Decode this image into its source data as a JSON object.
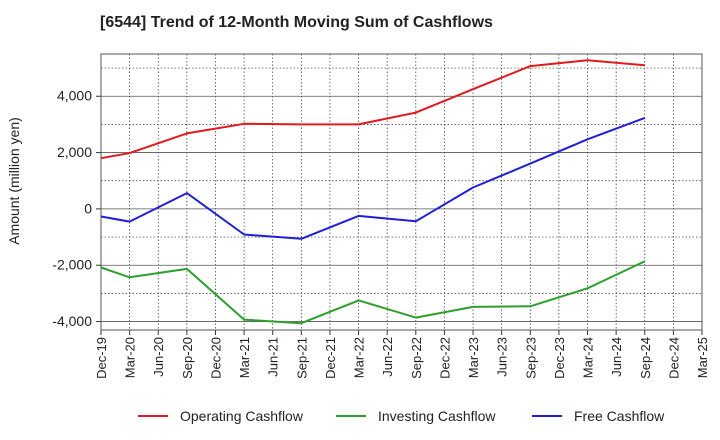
{
  "chart_data": {
    "type": "line",
    "title": "[6544]  Trend of 12-Month Moving Sum of Cashflows",
    "ylabel": "Amount (million yen)",
    "xlabel": "",
    "categories": [
      "Dec-19",
      "Mar-20",
      "Jun-20",
      "Sep-20",
      "Dec-20",
      "Mar-21",
      "Jun-21",
      "Sep-21",
      "Dec-21",
      "Mar-22",
      "Jun-22",
      "Sep-22",
      "Dec-22",
      "Mar-23",
      "Jun-23",
      "Sep-23",
      "Dec-23",
      "Mar-24",
      "Jun-24",
      "Sep-24",
      "Dec-24",
      "Mar-25"
    ],
    "ylim": [
      -4300,
      5500
    ],
    "yticks": [
      -4000,
      -2000,
      0,
      2000,
      4000
    ],
    "ytick_labels": [
      "-4,000",
      "-2,000",
      "0",
      "2,000",
      "4,000"
    ],
    "grid": true,
    "legend_position": "bottom",
    "series": [
      {
        "name": "Operating Cashflow",
        "color": "#e31a1c",
        "values": [
          1800,
          1980,
          null,
          2680,
          null,
          3020,
          null,
          3000,
          null,
          3000,
          null,
          3420,
          null,
          4250,
          null,
          5070,
          null,
          5280,
          null,
          5100,
          null,
          null
        ]
      },
      {
        "name": "Investing Cashflow",
        "color": "#2ca02c",
        "values": [
          -2080,
          -2430,
          null,
          -2130,
          null,
          -3930,
          null,
          -4060,
          null,
          -3250,
          null,
          -3860,
          null,
          -3480,
          null,
          -3460,
          null,
          -2820,
          null,
          -1860,
          null,
          null
        ]
      },
      {
        "name": "Free Cashflow",
        "color": "#1f1fd6",
        "values": [
          -270,
          -450,
          null,
          560,
          null,
          -910,
          null,
          -1060,
          null,
          -250,
          null,
          -440,
          null,
          760,
          null,
          1610,
          null,
          2470,
          null,
          3230,
          null,
          null
        ]
      }
    ]
  }
}
